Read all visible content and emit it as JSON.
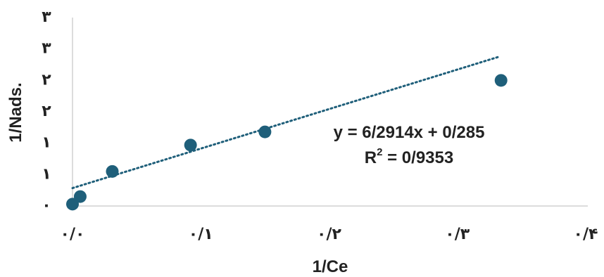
{
  "chart_data": {
    "type": "scatter",
    "xlabel": "1/Ce",
    "ylabel": "1/Nads.",
    "x_tick_labels": [
      "۰/۰",
      "۰/۱",
      "۰/۲",
      "۰/۳",
      "۰/۴"
    ],
    "y_tick_labels": [
      "۰",
      "۱",
      "۱",
      "۲",
      "۲",
      "۳",
      "۳"
    ],
    "xlim": [
      0,
      0.4
    ],
    "ylim": [
      0,
      3
    ],
    "grid": false,
    "series": [
      {
        "x": [
          0.0,
          0.006,
          0.031,
          0.092,
          0.15,
          0.334
        ],
        "y": [
          0.03,
          0.15,
          0.55,
          0.97,
          1.18,
          2.0
        ],
        "marker_color": "#1f5f7a"
      }
    ],
    "trendline": {
      "type": "linear",
      "slope": 6.2914,
      "intercept": 0.285,
      "x_range": [
        0,
        0.332
      ],
      "color": "#1f5f7a",
      "style": "dotted"
    },
    "annotations": {
      "equation": "y = 6/2914x + 0/285",
      "r2_prefix": "R",
      "r2_sup": "2",
      "r2_value": " = 0/9353"
    }
  }
}
